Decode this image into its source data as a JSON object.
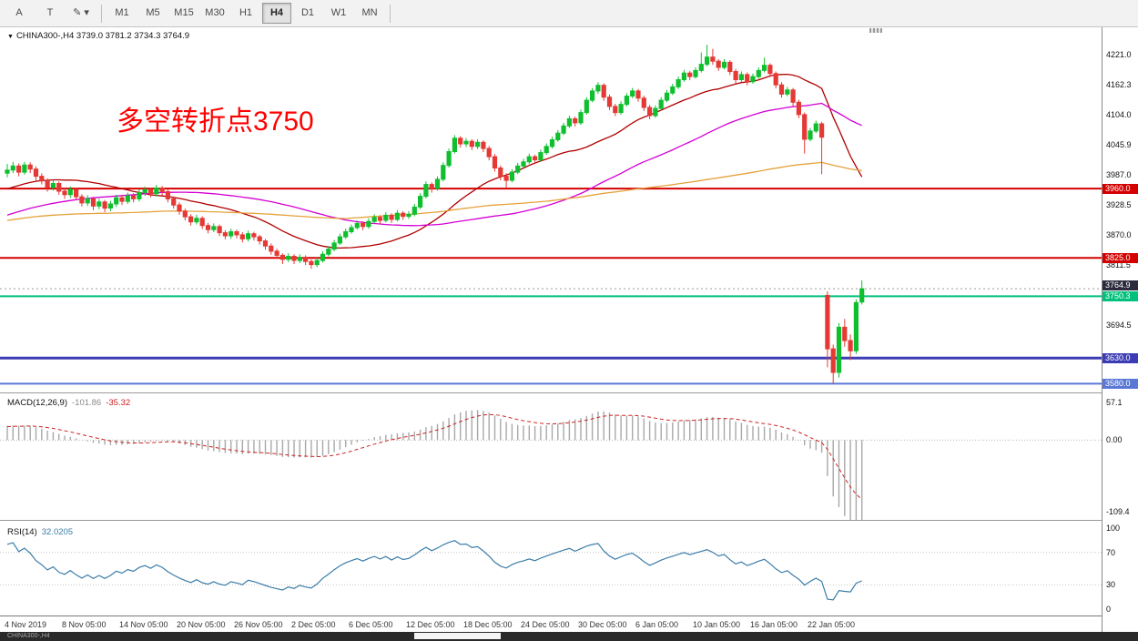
{
  "toolbar": {
    "tools": [
      {
        "name": "annotation-tool-button",
        "label": "A"
      },
      {
        "name": "text-tool-button",
        "label": "T"
      },
      {
        "name": "objects-tool-button",
        "label": "✎ ▾"
      }
    ],
    "timeframes": [
      "M1",
      "M5",
      "M15",
      "M30",
      "H1",
      "H4",
      "D1",
      "W1",
      "MN"
    ],
    "active_timeframe": "H4"
  },
  "chart": {
    "title": "CHINA300-,H4 3739.0 3781.2 3734.3 3764.9",
    "annotation": "多空转折点3750",
    "annotation_color": "#ff0000"
  },
  "bottom_bar": {
    "text": "CHINA300-,H4"
  },
  "chart_data": {
    "type": "candlestick",
    "symbol": "CHINA300-",
    "timeframe": "H4",
    "ohlc_current": {
      "open": 3739.0,
      "high": 3781.2,
      "low": 3734.3,
      "close": 3764.9
    },
    "price_max": 4274,
    "price_min": 3563,
    "y_axis_ticks": [
      4221.0,
      4162.3,
      4104.0,
      4045.9,
      3987.0,
      3928.5,
      3870.0,
      3811.5,
      3694.5
    ],
    "price_lines": [
      {
        "price": 3960.0,
        "color": "#d40000",
        "width": 2
      },
      {
        "price": 3825.0,
        "color": "#d40000",
        "width": 2
      },
      {
        "price": 3750.3,
        "color": "#00c17c",
        "width": 2
      },
      {
        "price": 3630.0,
        "color": "#3c3cb4",
        "width": 3
      },
      {
        "price": 3580.0,
        "color": "#5a78d6",
        "width": 2
      }
    ],
    "current_price": {
      "price": 3764.9,
      "tag_bg": "#2b2b3d",
      "line_color": "#999999"
    },
    "up_color": "#0ebf2e",
    "down_color": "#e53935",
    "moving_averages": [
      {
        "period": 21,
        "color": "#b00000"
      },
      {
        "period": 55,
        "color": "#d400d4"
      },
      {
        "period": 120,
        "color": "#e6a23c"
      }
    ],
    "x_labels": [
      "4 Nov 2019",
      "8 Nov 05:00",
      "14 Nov 05:00",
      "20 Nov 05:00",
      "26 Nov 05:00",
      "2 Dec 05:00",
      "6 Dec 05:00",
      "12 Dec 05:00",
      "18 Dec 05:00",
      "24 Dec 05:00",
      "30 Dec 05:00",
      "6 Jan 05:00",
      "10 Jan 05:00",
      "16 Jan 05:00",
      "22 Jan 05:00"
    ],
    "x_label_step": 10,
    "macd": {
      "label": "MACD(12,26,9)",
      "values_text": [
        "-101.86",
        "-35.32"
      ],
      "fast": 12,
      "slow": 26,
      "signal": 9,
      "axis": [
        {
          "v": 57.1,
          "label": "57.1"
        },
        {
          "v": 0,
          "label": "0.00"
        },
        {
          "v": -109.4,
          "label": "-109.4"
        }
      ],
      "range": [
        -122,
        70
      ],
      "hist_color": "#a8a8a8",
      "signal_color": "#cc2222"
    },
    "rsi": {
      "label": "RSI(14)",
      "value_text": "32.0205",
      "period": 14,
      "axis": [
        100,
        70,
        30,
        0
      ],
      "levels": [
        70,
        30
      ],
      "line_color": "#3c7ea8"
    },
    "history_seed": [
      3790,
      3795,
      3802,
      3798,
      3810,
      3815,
      3808,
      3820,
      3828,
      3822,
      3835,
      3840,
      3832,
      3845,
      3852,
      3848,
      3860,
      3855,
      3865,
      3872,
      3868,
      3878,
      3885,
      3880,
      3890,
      3886,
      3895,
      3902,
      3898,
      3905,
      3912,
      3908,
      3915,
      3922,
      3918,
      3912,
      3905,
      3910,
      3918,
      3925,
      3932,
      3928,
      3935,
      3942,
      3938,
      3945,
      3952,
      3948,
      3955,
      3962,
      3958,
      3952,
      3960,
      3968,
      3965,
      3972,
      3978,
      3982,
      3988,
      3992
    ],
    "candles": [
      [
        3990,
        4008,
        3982,
        3996
      ],
      [
        3996,
        4012,
        3990,
        4004
      ],
      [
        4004,
        4009,
        3984,
        3992
      ],
      [
        3992,
        4012,
        3987,
        4006
      ],
      [
        4006,
        4011,
        3990,
        3998
      ],
      [
        3998,
        4003,
        3976,
        3984
      ],
      [
        3984,
        3990,
        3968,
        3975
      ],
      [
        3975,
        3980,
        3954,
        3962
      ],
      [
        3962,
        3977,
        3956,
        3970
      ],
      [
        3970,
        3974,
        3948,
        3955
      ],
      [
        3955,
        3961,
        3940,
        3948
      ],
      [
        3948,
        3964,
        3942,
        3958
      ],
      [
        3958,
        3962,
        3937,
        3944
      ],
      [
        3944,
        3949,
        3925,
        3932
      ],
      [
        3932,
        3947,
        3926,
        3940
      ],
      [
        3940,
        3944,
        3918,
        3926
      ],
      [
        3926,
        3940,
        3920,
        3934
      ],
      [
        3934,
        3938,
        3914,
        3922
      ],
      [
        3922,
        3936,
        3916,
        3930
      ],
      [
        3930,
        3948,
        3924,
        3942
      ],
      [
        3942,
        3947,
        3928,
        3935
      ],
      [
        3935,
        3952,
        3930,
        3946
      ],
      [
        3946,
        3951,
        3933,
        3940
      ],
      [
        3940,
        3958,
        3935,
        3952
      ],
      [
        3952,
        3964,
        3946,
        3958
      ],
      [
        3958,
        3962,
        3943,
        3950
      ],
      [
        3950,
        3967,
        3945,
        3961
      ],
      [
        3961,
        3965,
        3947,
        3954
      ],
      [
        3954,
        3958,
        3933,
        3940
      ],
      [
        3940,
        3945,
        3921,
        3928
      ],
      [
        3928,
        3933,
        3909,
        3916
      ],
      [
        3916,
        3921,
        3898,
        3905
      ],
      [
        3905,
        3910,
        3888,
        3895
      ],
      [
        3895,
        3909,
        3890,
        3902
      ],
      [
        3902,
        3906,
        3881,
        3888
      ],
      [
        3888,
        3893,
        3873,
        3880
      ],
      [
        3880,
        3892,
        3875,
        3886
      ],
      [
        3886,
        3890,
        3867,
        3874
      ],
      [
        3874,
        3879,
        3861,
        3868
      ],
      [
        3868,
        3882,
        3862,
        3876
      ],
      [
        3876,
        3880,
        3863,
        3870
      ],
      [
        3870,
        3875,
        3855,
        3862
      ],
      [
        3862,
        3878,
        3857,
        3872
      ],
      [
        3872,
        3876,
        3859,
        3866
      ],
      [
        3866,
        3870,
        3851,
        3858
      ],
      [
        3858,
        3862,
        3841,
        3848
      ],
      [
        3848,
        3853,
        3831,
        3838
      ],
      [
        3838,
        3843,
        3823,
        3830
      ],
      [
        3830,
        3834,
        3813,
        3822
      ],
      [
        3822,
        3834,
        3817,
        3828
      ],
      [
        3828,
        3832,
        3813,
        3820
      ],
      [
        3820,
        3832,
        3815,
        3826
      ],
      [
        3826,
        3830,
        3811,
        3818
      ],
      [
        3818,
        3822,
        3804,
        3812
      ],
      [
        3812,
        3826,
        3807,
        3820
      ],
      [
        3820,
        3838,
        3816,
        3832
      ],
      [
        3832,
        3848,
        3828,
        3842
      ],
      [
        3842,
        3860,
        3838,
        3854
      ],
      [
        3854,
        3872,
        3850,
        3866
      ],
      [
        3866,
        3882,
        3862,
        3876
      ],
      [
        3876,
        3890,
        3872,
        3884
      ],
      [
        3884,
        3898,
        3880,
        3892
      ],
      [
        3892,
        3896,
        3879,
        3886
      ],
      [
        3886,
        3902,
        3882,
        3896
      ],
      [
        3896,
        3910,
        3892,
        3904
      ],
      [
        3904,
        3908,
        3891,
        3898
      ],
      [
        3898,
        3914,
        3894,
        3908
      ],
      [
        3908,
        3912,
        3893,
        3900
      ],
      [
        3900,
        3918,
        3896,
        3912
      ],
      [
        3912,
        3916,
        3899,
        3906
      ],
      [
        3906,
        3916,
        3901,
        3910
      ],
      [
        3910,
        3930,
        3906,
        3924
      ],
      [
        3924,
        3951,
        3920,
        3945
      ],
      [
        3945,
        3974,
        3941,
        3968
      ],
      [
        3968,
        3972,
        3952,
        3960
      ],
      [
        3960,
        3984,
        3956,
        3978
      ],
      [
        3978,
        4011,
        3974,
        4005
      ],
      [
        4005,
        4038,
        4001,
        4032
      ],
      [
        4032,
        4064,
        4028,
        4058
      ],
      [
        4058,
        4062,
        4040,
        4047
      ],
      [
        4047,
        4058,
        4041,
        4052
      ],
      [
        4052,
        4056,
        4035,
        4042
      ],
      [
        4042,
        4056,
        4037,
        4050
      ],
      [
        4050,
        4054,
        4031,
        4038
      ],
      [
        4038,
        4043,
        4015,
        4022
      ],
      [
        4022,
        4027,
        3993,
        4000
      ],
      [
        4000,
        4005,
        3976,
        3984
      ],
      [
        3984,
        3990,
        3962,
        3976
      ],
      [
        3976,
        3998,
        3972,
        3992
      ],
      [
        3992,
        4010,
        3988,
        4004
      ],
      [
        4004,
        4018,
        4000,
        4012
      ],
      [
        4012,
        4028,
        4008,
        4022
      ],
      [
        4022,
        4026,
        4009,
        4016
      ],
      [
        4016,
        4036,
        4012,
        4030
      ],
      [
        4030,
        4048,
        4026,
        4042
      ],
      [
        4042,
        4061,
        4038,
        4055
      ],
      [
        4055,
        4074,
        4051,
        4068
      ],
      [
        4068,
        4088,
        4064,
        4082
      ],
      [
        4082,
        4102,
        4078,
        4096
      ],
      [
        4096,
        4100,
        4081,
        4088
      ],
      [
        4088,
        4114,
        4084,
        4108
      ],
      [
        4108,
        4138,
        4104,
        4132
      ],
      [
        4132,
        4156,
        4128,
        4150
      ],
      [
        4150,
        4167,
        4144,
        4161
      ],
      [
        4161,
        4165,
        4131,
        4138
      ],
      [
        4138,
        4143,
        4113,
        4120
      ],
      [
        4120,
        4125,
        4101,
        4108
      ],
      [
        4108,
        4130,
        4104,
        4124
      ],
      [
        4124,
        4146,
        4120,
        4140
      ],
      [
        4140,
        4156,
        4136,
        4150
      ],
      [
        4150,
        4154,
        4129,
        4136
      ],
      [
        4136,
        4141,
        4111,
        4118
      ],
      [
        4118,
        4123,
        4095,
        4102
      ],
      [
        4102,
        4122,
        4098,
        4116
      ],
      [
        4116,
        4138,
        4112,
        4132
      ],
      [
        4132,
        4152,
        4128,
        4146
      ],
      [
        4146,
        4164,
        4142,
        4158
      ],
      [
        4158,
        4178,
        4154,
        4172
      ],
      [
        4172,
        4191,
        4168,
        4185
      ],
      [
        4185,
        4189,
        4171,
        4178
      ],
      [
        4178,
        4196,
        4174,
        4190
      ],
      [
        4190,
        4225,
        4186,
        4202
      ],
      [
        4202,
        4240,
        4198,
        4216
      ],
      [
        4216,
        4232,
        4201,
        4208
      ],
      [
        4208,
        4212,
        4189,
        4196
      ],
      [
        4196,
        4212,
        4192,
        4206
      ],
      [
        4206,
        4210,
        4181,
        4188
      ],
      [
        4188,
        4193,
        4165,
        4172
      ],
      [
        4172,
        4188,
        4168,
        4182
      ],
      [
        4182,
        4186,
        4161,
        4168
      ],
      [
        4168,
        4184,
        4164,
        4178
      ],
      [
        4178,
        4196,
        4174,
        4190
      ],
      [
        4190,
        4215,
        4186,
        4200
      ],
      [
        4200,
        4204,
        4177,
        4184
      ],
      [
        4184,
        4188,
        4155,
        4162
      ],
      [
        4162,
        4167,
        4137,
        4144
      ],
      [
        4144,
        4158,
        4140,
        4152
      ],
      [
        4152,
        4156,
        4121,
        4128
      ],
      [
        4128,
        4133,
        4097,
        4104
      ],
      [
        4104,
        4108,
        4028,
        4056
      ],
      [
        4056,
        4078,
        4052,
        4072
      ],
      [
        4072,
        4092,
        4068,
        4086
      ],
      [
        4086,
        4090,
        3988,
        4060
      ],
      [
        3752,
        3760,
        3612,
        3648
      ],
      [
        3648,
        3656,
        3580,
        3602
      ],
      [
        3602,
        3698,
        3592,
        3690
      ],
      [
        3690,
        3706,
        3652,
        3664
      ],
      [
        3664,
        3676,
        3626,
        3644
      ],
      [
        3644,
        3744,
        3638,
        3738
      ],
      [
        3739,
        3781.2,
        3734.3,
        3764.9
      ]
    ]
  }
}
